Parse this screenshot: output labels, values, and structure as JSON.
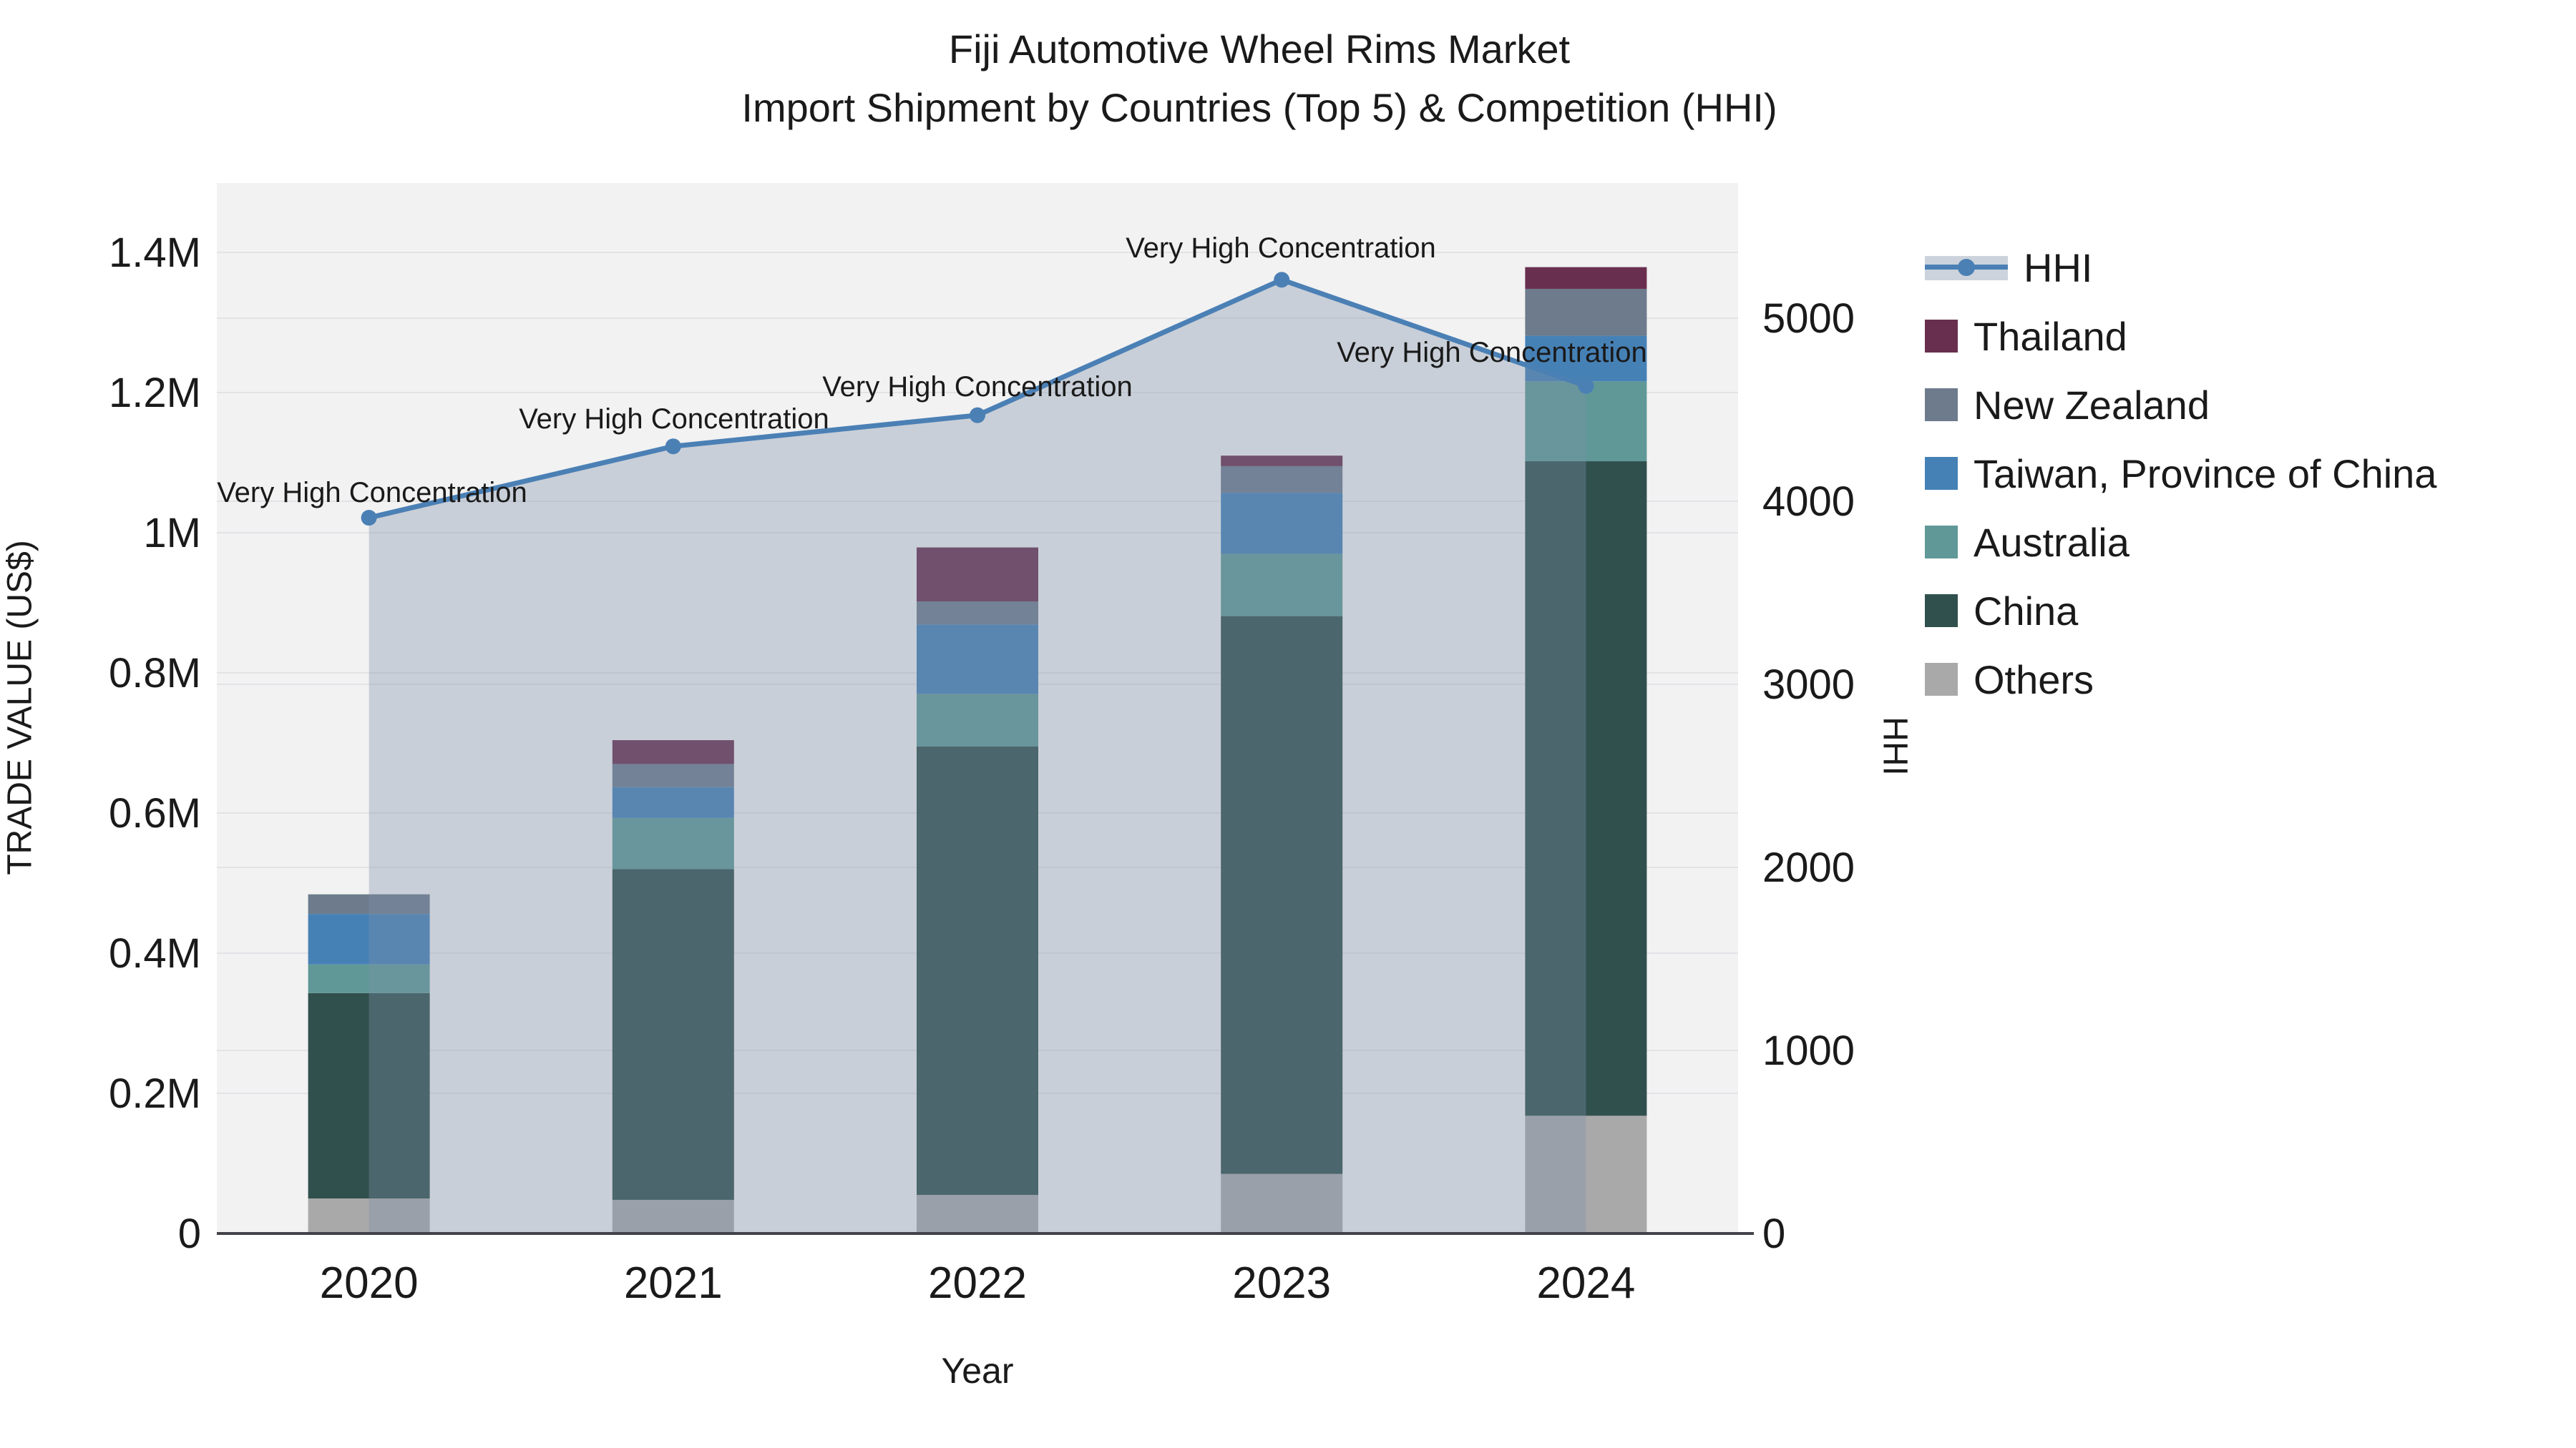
{
  "title": {
    "line1": "Fiji Automotive Wheel Rims Market",
    "line2": "Import Shipment by Countries (Top 5) & Competition (HHI)"
  },
  "axes": {
    "x": {
      "title": "Year",
      "categories": [
        "2020",
        "2021",
        "2022",
        "2023",
        "2024"
      ]
    },
    "y_left": {
      "title": "TRADE VALUE (US$)",
      "tick_labels": [
        "0",
        "0.2M",
        "0.4M",
        "0.6M",
        "0.8M",
        "1M",
        "1.2M",
        "1.4M"
      ],
      "tick_values": [
        0,
        200000,
        400000,
        600000,
        800000,
        1000000,
        1200000,
        1400000
      ],
      "range": [
        0,
        1400000
      ]
    },
    "y_right": {
      "title": "HHI",
      "tick_labels": [
        "0",
        "1000",
        "2000",
        "3000",
        "4000",
        "5000"
      ],
      "tick_values": [
        0,
        1000,
        2000,
        3000,
        4000,
        5000
      ],
      "range": [
        0,
        5000
      ]
    }
  },
  "legend": {
    "items": [
      {
        "label": "HHI",
        "type": "line",
        "color": "#4b80b5",
        "band": "#ccd3dc"
      },
      {
        "label": "Thailand",
        "type": "bar",
        "color": "#692f4e"
      },
      {
        "label": "New Zealand",
        "type": "bar",
        "color": "#6d7b8c"
      },
      {
        "label": "Taiwan, Province of China",
        "type": "bar",
        "color": "#4681b6"
      },
      {
        "label": "Australia",
        "type": "bar",
        "color": "#5f9896"
      },
      {
        "label": "China",
        "type": "bar",
        "color": "#30504d"
      },
      {
        "label": "Others",
        "type": "bar",
        "color": "#a9a9a9"
      }
    ]
  },
  "chart_data": {
    "type": "combo-stacked-bar-line",
    "title": "Fiji Automotive Wheel Rims Market — Import Shipment by Countries (Top 5) & Competition (HHI)",
    "xlabel": "Year",
    "ylabel": "TRADE VALUE (US$)",
    "ylabel_right": "HHI",
    "categories": [
      "2020",
      "2021",
      "2022",
      "2023",
      "2024"
    ],
    "bar_stack_order_bottom_to_top": [
      "Others",
      "China",
      "Australia",
      "Taiwan, Province of China",
      "New Zealand",
      "Thailand"
    ],
    "series": [
      {
        "name": "Others",
        "type": "bar",
        "axis": "left",
        "color": "#a9a9a9",
        "values": [
          50000,
          48000,
          55000,
          85000,
          168000
        ]
      },
      {
        "name": "China",
        "type": "bar",
        "axis": "left",
        "color": "#30504d",
        "values": [
          293000,
          472000,
          640000,
          796000,
          934000
        ]
      },
      {
        "name": "Australia",
        "type": "bar",
        "axis": "left",
        "color": "#5f9896",
        "values": [
          41000,
          73000,
          75000,
          89000,
          114000
        ]
      },
      {
        "name": "Taiwan, Province of China",
        "type": "bar",
        "axis": "left",
        "color": "#4681b6",
        "values": [
          72000,
          44000,
          99000,
          87000,
          65000
        ]
      },
      {
        "name": "New Zealand",
        "type": "bar",
        "axis": "left",
        "color": "#6d7b8c",
        "values": [
          28000,
          33000,
          33000,
          38000,
          67000
        ]
      },
      {
        "name": "Thailand",
        "type": "bar",
        "axis": "left",
        "color": "#692f4e",
        "values": [
          0,
          34000,
          77000,
          15000,
          31000
        ]
      },
      {
        "name": "HHI",
        "type": "line",
        "axis": "right",
        "color": "#4b80b5",
        "fill": "rgba(125,142,168,0.35)",
        "values": [
          3910,
          4300,
          4470,
          5210,
          4630
        ]
      }
    ],
    "bar_totals": [
      484000,
      704000,
      979000,
      1110000,
      1379000
    ],
    "ylim_left": [
      0,
      1400000
    ],
    "ylim_right": [
      0,
      5000
    ],
    "grid": true,
    "legend_position": "right",
    "annotations": [
      {
        "text": "Very High Concentration",
        "x": 520,
        "y": 688
      },
      {
        "text": "Very High Concentration",
        "x": 942,
        "y": 585
      },
      {
        "text": "Very High Concentration",
        "x": 1366,
        "y": 540
      },
      {
        "text": "Very High Concentration",
        "x": 1790,
        "y": 346
      },
      {
        "text": "Very High Concentration",
        "x": 2085,
        "y": 492
      }
    ]
  },
  "layout_colors": {
    "plot_bg": "#f2f2f2",
    "grid_line": "#e3e3e7",
    "axis_line": "#42424a",
    "text": "#1a1a1a"
  }
}
